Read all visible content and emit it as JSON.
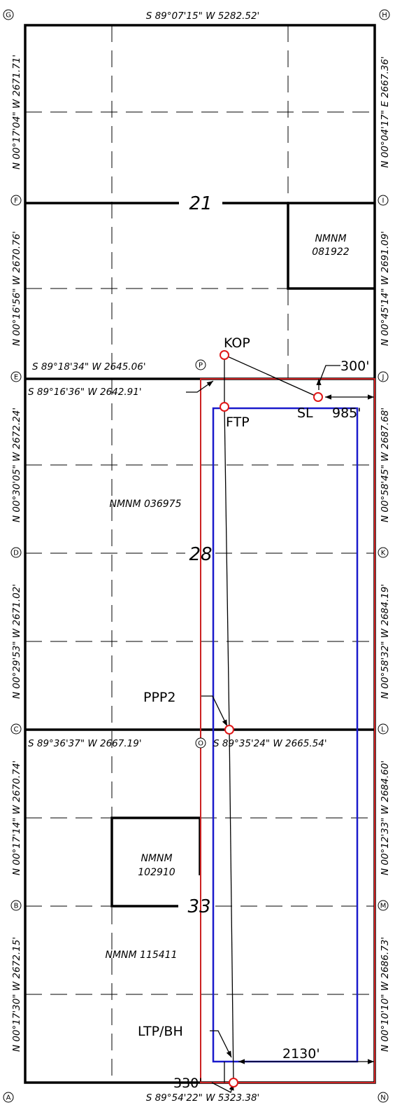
{
  "corners": {
    "g": "G",
    "h": "H",
    "f": "F",
    "i": "I",
    "e": "E",
    "j": "J",
    "d": "D",
    "k": "K",
    "c": "C",
    "l": "L",
    "b": "B",
    "m": "M",
    "a": "A",
    "n": "N",
    "p": "P",
    "o": "O"
  },
  "bearings": {
    "top": "S 89°07'15\" W   5282.52'",
    "bottom": "S 89°54'22\" W 5323.38'",
    "sec21_south_a": "S 89°18'34\" W 2645.06'",
    "sec21_south_b": "S 89°16'36\" W 2642.91'",
    "sec28_south_a": "S 89°36'37\" W 2667.19'",
    "sec28_south_b": "S 89°35'24\" W 2665.54'",
    "left_1": "N 00°17'04\" W   2671.71'",
    "left_2": "N 00°16'56\" W   2670.76'",
    "left_3": "N 00°30'05\" W   2672.24'",
    "left_4": "N 00°29'53\" W   2671.02'",
    "left_5": "N 00°17'14\" W   2670.74'",
    "left_6": "N 00°17'30\" W   2672.15'",
    "right_1": "N 00°04'17\" E   2667.36'",
    "right_2": "N 00°45'14\" W   2691.09'",
    "right_3": "N 00°58'45\" W   2687.68'",
    "right_4": "N 00°58'32\" W   2684.19'",
    "right_5": "N 00°12'33\" W   2684.60'",
    "right_6": "N 00°10'10\" W   2686.73'"
  },
  "sections": {
    "s21": "21",
    "s28": "28",
    "s33": "33"
  },
  "leases": {
    "l081922_a": "NMNM",
    "l081922_b": "081922",
    "l036975": "NMNM  036975",
    "l102910_a": "NMNM",
    "l102910_b": "102910",
    "l115411": "NMNM  115411"
  },
  "well_points": {
    "kop": "KOP",
    "ftp": "FTP",
    "sl": "SL",
    "ppp2": "PPP2",
    "ltp": "LTP/BH"
  },
  "dimensions": {
    "d300": "300'",
    "d985": "985'",
    "d330": "330'",
    "d2130": "2130'"
  },
  "colors": {
    "boundary": "#000000",
    "spacing_unit": "#cc2222",
    "setback": "#1a1acc",
    "well_marker": "#e01818"
  }
}
